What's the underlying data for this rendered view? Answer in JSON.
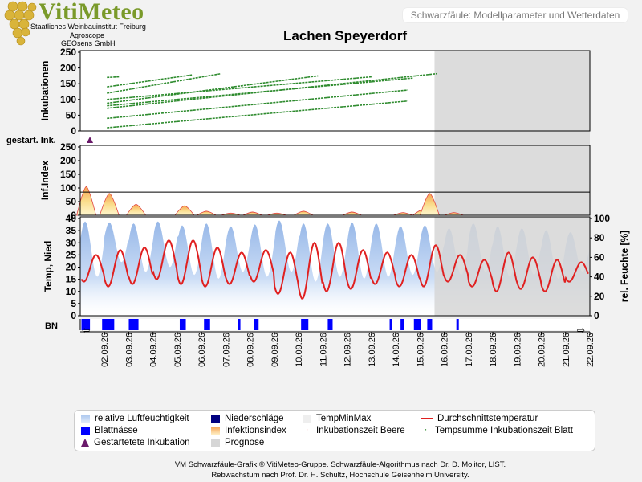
{
  "header": {
    "brand": "VitiMeteo",
    "org_lines": [
      "Staatliches Weinbauinstitut Freiburg",
      "Agroscope",
      "GEOsens GmbH"
    ],
    "subtitle": "Schwarzfäule: Modellparameter und Wetterdaten",
    "title": "Lachen Speyerdorf"
  },
  "panels": {
    "incubation": {
      "ylabel": "Inkubationen",
      "ylim": [
        0,
        250
      ],
      "ticks": [
        "0",
        "50",
        "100",
        "150",
        "200",
        "250"
      ]
    },
    "started": {
      "label": "gestart. Ink."
    },
    "infindex": {
      "ylabel": "Inf.Index",
      "ylim": [
        0,
        250
      ],
      "ticks": [
        "0",
        "50",
        "100",
        "150",
        "200",
        "250"
      ]
    },
    "weather": {
      "ylabel": "Temp, Nied",
      "ylabel_right": "rel. Feuchte [%]",
      "ylim": [
        0,
        40
      ],
      "ticks": [
        "0",
        "5",
        "10",
        "15",
        "20",
        "25",
        "30",
        "35",
        "40"
      ],
      "ylim_right": [
        0,
        100
      ],
      "ticks_right": [
        "0",
        "20",
        "40",
        "60",
        "80",
        "100"
      ]
    },
    "bn": {
      "label": "BN"
    }
  },
  "colors": {
    "incubation": "#2e8b2e",
    "temperature": "#e02020",
    "humidity": "#a9c6ee",
    "leafwet": "#0000ff",
    "forecast": "#d6d6d6",
    "triangle": "#6a1a6a"
  },
  "chart_data": {
    "type": "line",
    "dates": [
      "02.09.26",
      "03.09.26",
      "04.09.26",
      "05.09.26",
      "06.09.26",
      "07.09.26",
      "08.09.26",
      "09.09.26",
      "10.09.26",
      "11.09.26",
      "12.09.26",
      "13.09.26",
      "14.09.26",
      "15.09.26",
      "16.09.26",
      "17.09.26",
      "18.09.26",
      "19.09.26",
      "20.09.26",
      "21.09.26",
      "22.09.26"
    ],
    "forecast_start": "15.09.26 12:00",
    "incubation_lines": [
      {
        "start": [
          1.1,
          140
        ],
        "end": [
          4.6,
          178
        ]
      },
      {
        "start": [
          1.1,
          120
        ],
        "end": [
          5.8,
          182
        ]
      },
      {
        "start": [
          1.1,
          88
        ],
        "end": [
          9.8,
          175
        ]
      },
      {
        "start": [
          1.1,
          100
        ],
        "end": [
          12.0,
          172
        ]
      },
      {
        "start": [
          1.1,
          80
        ],
        "end": [
          13.7,
          168
        ]
      },
      {
        "start": [
          1.1,
          72
        ],
        "end": [
          14.7,
          182
        ]
      },
      {
        "start": [
          1.1,
          40
        ],
        "end": [
          13.5,
          130
        ]
      },
      {
        "start": [
          1.1,
          10
        ],
        "end": [
          13.5,
          95
        ]
      },
      {
        "start": [
          1.1,
          170
        ],
        "end": [
          1.6,
          172
        ]
      }
    ],
    "started_incubations": [
      0.2
    ],
    "infection_index_threshold": 85,
    "infection_index_peaks": [
      [
        0.25,
        105
      ],
      [
        1.2,
        80
      ],
      [
        2.3,
        40
      ],
      [
        4.3,
        35
      ],
      [
        5.2,
        15
      ],
      [
        6.2,
        8
      ],
      [
        7.1,
        12
      ],
      [
        8.1,
        8
      ],
      [
        9.2,
        15
      ],
      [
        11.2,
        12
      ],
      [
        13.3,
        10
      ],
      [
        14.1,
        20
      ],
      [
        14.4,
        80
      ],
      [
        15.4,
        10
      ]
    ],
    "temperature_daily_min_max": [
      [
        14,
        25
      ],
      [
        12,
        27
      ],
      [
        13,
        28
      ],
      [
        15,
        31
      ],
      [
        13,
        31
      ],
      [
        12,
        28
      ],
      [
        13,
        26
      ],
      [
        14,
        27
      ],
      [
        9,
        26
      ],
      [
        7,
        30
      ],
      [
        10,
        30
      ],
      [
        11,
        27
      ],
      [
        13,
        26
      ],
      [
        12,
        25
      ],
      [
        12,
        29
      ],
      [
        14,
        25
      ],
      [
        12,
        23
      ],
      [
        10,
        26
      ],
      [
        11,
        24
      ],
      [
        10,
        23
      ],
      [
        14,
        22
      ]
    ],
    "humidity_daily_min_max": [
      [
        40,
        97
      ],
      [
        55,
        96
      ],
      [
        45,
        95
      ],
      [
        50,
        97
      ],
      [
        42,
        93
      ],
      [
        38,
        95
      ],
      [
        45,
        92
      ],
      [
        40,
        94
      ],
      [
        45,
        98
      ],
      [
        35,
        95
      ],
      [
        40,
        95
      ],
      [
        38,
        96
      ],
      [
        40,
        95
      ],
      [
        42,
        92
      ],
      [
        45,
        93
      ],
      [
        42,
        90
      ],
      [
        45,
        95
      ],
      [
        40,
        92
      ],
      [
        42,
        90
      ],
      [
        38,
        88
      ],
      [
        45,
        86
      ]
    ],
    "leaf_wetness_periods": [
      [
        0.05,
        0.4
      ],
      [
        0.9,
        1.4
      ],
      [
        2.0,
        2.4
      ],
      [
        4.1,
        4.35
      ],
      [
        5.1,
        5.35
      ],
      [
        6.5,
        6.6
      ],
      [
        7.15,
        7.35
      ],
      [
        9.1,
        9.4
      ],
      [
        10.2,
        10.4
      ],
      [
        12.75,
        12.85
      ],
      [
        13.2,
        13.35
      ],
      [
        13.75,
        14.05
      ],
      [
        14.3,
        14.5
      ],
      [
        15.5,
        15.6
      ]
    ],
    "legend": [
      {
        "label": "relative Luftfeuchtigkeit",
        "swatch": "#a9c6ee"
      },
      {
        "label": "Niederschläge",
        "swatch": "#000080"
      },
      {
        "label": "TempMinMax",
        "swatch": "#eeeeee"
      },
      {
        "label": "Durchschnittstemperatur",
        "swatch": "line-red"
      },
      {
        "label": "Blattnässe",
        "swatch": "#0000ff"
      },
      {
        "label": "Infektionsindex",
        "swatch": "gradient"
      },
      {
        "label": "Inkubationszeit Beere",
        "swatch": "dot-red"
      },
      {
        "label": "Tempsumme Inkubationszeit Blatt",
        "swatch": "dot-green"
      },
      {
        "label": "Gestartetete Inkubation",
        "swatch": "triangle"
      },
      {
        "label": "Prognose",
        "swatch": "#d6d6d6"
      }
    ]
  },
  "footer": {
    "line1": "VM Schwarzfäule-Grafik © VitiMeteo-Gruppe. Schwarzfäule-Algorithmus nach Dr. D. Molitor, LIST.",
    "line2": "Rebwachstum nach Prof. Dr. H. Schultz, Hochschule Geisenheim University."
  }
}
